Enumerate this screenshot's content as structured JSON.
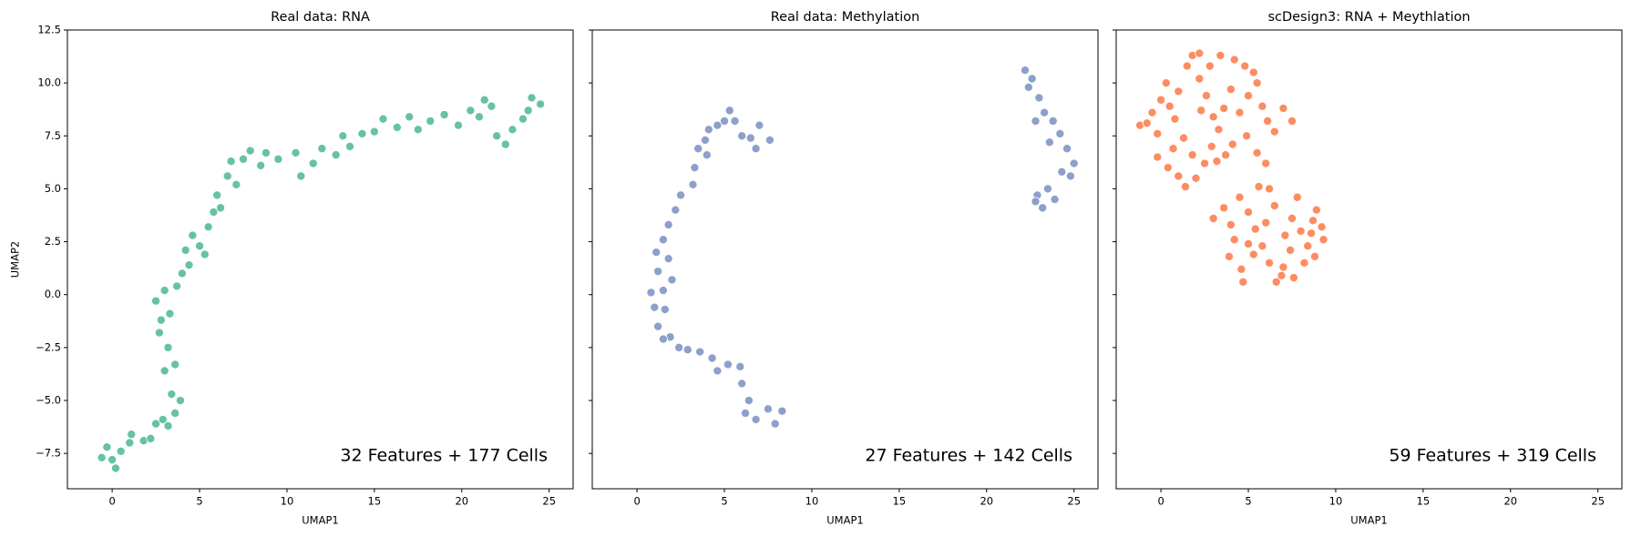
{
  "chart_data": [
    {
      "type": "scatter",
      "title": "Real data: RNA",
      "xlabel": "UMAP1",
      "ylabel": "UMAP2",
      "annotation": "32 Features + 177 Cells",
      "color": "#66c2a5",
      "xlim": [
        -2.56,
        26.37
      ],
      "ylim": [
        -9.17,
        12.5
      ],
      "xticks": [
        0,
        5,
        10,
        15,
        20,
        25
      ],
      "yticks": [
        {
          "value": -7.5,
          "label": "−7.5"
        },
        {
          "value": -5,
          "label": "−5.0"
        },
        {
          "value": -2.5,
          "label": "−2.5"
        },
        {
          "value": 0,
          "label": "0.0"
        },
        {
          "value": 2.5,
          "label": "2.5"
        },
        {
          "value": 5,
          "label": "5.0"
        },
        {
          "value": 7.5,
          "label": "7.5"
        },
        {
          "value": 10,
          "label": "10.0"
        },
        {
          "value": 12.5,
          "label": "12.5"
        }
      ],
      "x": [
        -0.6,
        -0.3,
        0,
        0.2,
        0.5,
        1,
        1.1,
        1.8,
        2.2,
        2.5,
        2.9,
        3.2,
        3.6,
        3.4,
        3.9,
        3.6,
        3.0,
        3.2,
        2.7,
        2.8,
        3.3,
        2.5,
        3.0,
        3.7,
        4.0,
        4.4,
        4.2,
        4.6,
        5.0,
        5.3,
        5.5,
        5.8,
        6.2,
        6.0,
        6.6,
        6.8,
        7.1,
        7.5,
        7.9,
        8.5,
        8.8,
        9.5,
        10.5,
        10.8,
        11.5,
        12,
        12.8,
        13.2,
        13.6,
        14.3,
        15,
        15.5,
        16.3,
        17,
        17.5,
        18.2,
        19,
        19.8,
        20.5,
        21,
        21.3,
        21.7,
        22,
        22.5,
        22.9,
        23.5,
        24,
        24.5,
        23.8
      ],
      "y": [
        -7.7,
        -7.2,
        -7.8,
        -8.2,
        -7.4,
        -7.0,
        -6.6,
        -6.9,
        -6.8,
        -6.1,
        -5.9,
        -6.2,
        -5.6,
        -4.7,
        -5.0,
        -3.3,
        -3.6,
        -2.5,
        -1.8,
        -1.2,
        -0.9,
        -0.3,
        0.2,
        0.4,
        1.0,
        1.4,
        2.1,
        2.8,
        2.3,
        1.9,
        3.2,
        3.9,
        4.1,
        4.7,
        5.6,
        6.3,
        5.2,
        6.4,
        6.8,
        6.1,
        6.7,
        6.4,
        6.7,
        5.6,
        6.2,
        6.9,
        6.6,
        7.5,
        7.0,
        7.6,
        7.7,
        8.3,
        7.9,
        8.4,
        7.8,
        8.2,
        8.5,
        8.0,
        8.7,
        8.4,
        9.2,
        8.9,
        7.5,
        7.1,
        7.8,
        8.3,
        9.3,
        9.0,
        8.7
      ]
    },
    {
      "type": "scatter",
      "title": "Real data: Methylation",
      "xlabel": "UMAP1",
      "annotation": "27 Features + 142 Cells",
      "color": "#8da0cb",
      "xlim": [
        -2.56,
        26.37
      ],
      "ylim": [
        -9.17,
        12.5
      ],
      "xticks": [
        0,
        5,
        10,
        15,
        20,
        25
      ],
      "yticks": [
        -7.5,
        -5,
        -2.5,
        0,
        2.5,
        5,
        7.5,
        10,
        12.5
      ],
      "x": [
        5.3,
        5.6,
        5.0,
        4.6,
        4.1,
        3.9,
        3.5,
        3.3,
        4.0,
        3.2,
        2.5,
        2.2,
        1.8,
        1.5,
        1.1,
        1.8,
        1.2,
        2.0,
        1.5,
        0.8,
        1.0,
        1.6,
        1.2,
        1.9,
        1.5,
        2.4,
        2.9,
        3.6,
        4.3,
        4.6,
        5.2,
        5.9,
        6.0,
        6.4,
        6.2,
        6.8,
        7.5,
        7.9,
        8.3,
        6.0,
        6.5,
        7.0,
        7.6,
        6.8,
        22.2,
        22.6,
        22.4,
        23.0,
        23.3,
        22.8,
        23.8,
        24.2,
        23.6,
        24.6,
        25.0,
        24.3,
        24.8,
        23.5,
        22.9,
        23.9,
        23.2,
        22.8
      ],
      "y": [
        8.7,
        8.2,
        8.2,
        8.0,
        7.8,
        7.3,
        6.9,
        6.0,
        6.6,
        5.2,
        4.7,
        4.0,
        3.3,
        2.6,
        2.0,
        1.7,
        1.1,
        0.7,
        0.2,
        0.1,
        -0.6,
        -0.7,
        -1.5,
        -2.0,
        -2.1,
        -2.5,
        -2.6,
        -2.7,
        -3.0,
        -3.6,
        -3.3,
        -3.4,
        -4.2,
        -5.0,
        -5.6,
        -5.9,
        -5.4,
        -6.1,
        -5.5,
        7.5,
        7.4,
        8.0,
        7.3,
        6.9,
        10.6,
        10.2,
        9.8,
        9.3,
        8.6,
        8.2,
        8.2,
        7.6,
        7.2,
        6.9,
        6.2,
        5.8,
        5.6,
        5.0,
        4.7,
        4.5,
        4.1,
        4.4
      ]
    },
    {
      "type": "scatter",
      "title": "scDesign3: RNA + Meythlation",
      "xlabel": "UMAP1",
      "annotation": "59 Features + 319 Cells",
      "color": "#fc8d62",
      "xlim": [
        -2.56,
        26.37
      ],
      "ylim": [
        -9.17,
        12.5
      ],
      "xticks": [
        0,
        5,
        10,
        15,
        20,
        25
      ],
      "yticks": [
        -7.5,
        -5,
        -2.5,
        0,
        2.5,
        5,
        7.5,
        10,
        12.5
      ],
      "x": [
        -1.2,
        -0.8,
        -0.5,
        -0.2,
        0,
        0.3,
        0.5,
        0.8,
        1.0,
        1.5,
        1.8,
        2.2,
        1.3,
        0.7,
        -0.2,
        0.4,
        1.0,
        1.4,
        2.0,
        2.5,
        2.9,
        3.3,
        3.6,
        4.0,
        3.4,
        4.2,
        4.8,
        5.3,
        5.0,
        4.5,
        4.1,
        3.7,
        3.0,
        2.6,
        2.2,
        5.8,
        6.1,
        6.5,
        7.0,
        7.5,
        6.0,
        5.5,
        4.9,
        1.8,
        2.3,
        5.5,
        2.8,
        3.2,
        3.0,
        3.6,
        4.0,
        4.5,
        4.2,
        3.9,
        4.6,
        5.0,
        5.4,
        5.0,
        5.6,
        6.2,
        6.5,
        6.0,
        5.8,
        6.2,
        6.6,
        7.0,
        7.4,
        7.6,
        7.1,
        7.5,
        7.8,
        8.0,
        8.4,
        8.7,
        8.9,
        9.2,
        9.3,
        8.8,
        8.2,
        5.3,
        4.7,
        6.9,
        8.6
      ],
      "y": [
        8.0,
        8.1,
        8.6,
        7.6,
        9.2,
        10.0,
        8.9,
        8.3,
        9.6,
        10.8,
        11.3,
        11.4,
        7.4,
        6.9,
        6.5,
        6.0,
        5.6,
        5.1,
        5.5,
        6.2,
        7.0,
        7.8,
        8.8,
        9.7,
        11.3,
        11.1,
        10.8,
        10.5,
        9.4,
        8.6,
        7.1,
        6.6,
        8.4,
        9.4,
        10.2,
        8.9,
        8.2,
        7.7,
        8.8,
        8.2,
        6.2,
        6.7,
        7.5,
        6.6,
        8.7,
        10.0,
        10.8,
        6.3,
        3.6,
        4.1,
        3.3,
        4.6,
        2.6,
        1.8,
        1.2,
        2.4,
        3.1,
        3.9,
        5.1,
        5.0,
        4.2,
        3.4,
        2.3,
        1.5,
        0.6,
        1.3,
        2.1,
        0.8,
        2.8,
        3.6,
        4.6,
        3.0,
        2.3,
        3.5,
        4.0,
        3.2,
        2.6,
        1.8,
        1.5,
        1.9,
        0.6,
        0.9,
        2.9
      ]
    }
  ]
}
